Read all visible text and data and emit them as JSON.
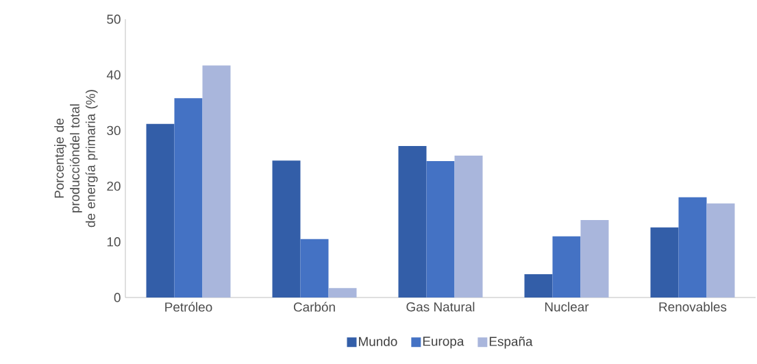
{
  "chart_data": {
    "type": "bar",
    "ylabel": "Porcentaje de produccióndel total de energía primaria (%)",
    "categories": [
      "Petróleo",
      "Carbón",
      "Gas Natural",
      "Nuclear",
      "Renovables"
    ],
    "series": [
      {
        "name": "Mundo",
        "color": "#335ea8",
        "values": [
          31.2,
          24.6,
          27.2,
          4.2,
          12.6
        ]
      },
      {
        "name": "Europa",
        "color": "#4472c4",
        "values": [
          35.8,
          10.5,
          24.5,
          11.0,
          18.0
        ]
      },
      {
        "name": "España",
        "color": "#a9b6dc",
        "values": [
          41.7,
          1.7,
          25.5,
          13.9,
          16.9
        ]
      }
    ],
    "ylim": [
      0,
      50
    ],
    "yticks": [
      0,
      10,
      20,
      30,
      40,
      50
    ],
    "legend": "bottom"
  }
}
